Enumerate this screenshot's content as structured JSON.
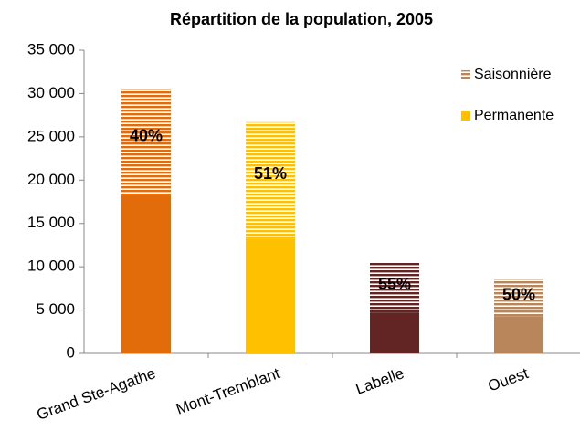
{
  "chart_data": {
    "type": "stacked_bar",
    "title": "Répartition de la population, 2005",
    "categories": [
      "Grand Ste-Agathe",
      "Mont-Tremblant",
      "Labelle",
      "Ouest"
    ],
    "category_colors": [
      "#e36c0a",
      "#ffc000",
      "#632523",
      "#b8865a"
    ],
    "series": [
      {
        "name": "Permanente",
        "color": "#ffc000",
        "pattern": "solid",
        "values": [
          18300,
          13200,
          4700,
          4300
        ]
      },
      {
        "name": "Saisonnière",
        "color": "#b8865a",
        "pattern": "striped",
        "values": [
          12200,
          13500,
          5800,
          4300
        ]
      }
    ],
    "seasonal_share_labels": [
      "40%",
      "51%",
      "55%",
      "50%"
    ],
    "ylim": [
      0,
      35000
    ],
    "yticks": [
      0,
      {
        "value": 5000,
        "label": "5 000"
      },
      {
        "value": 10000,
        "label": "10 000"
      },
      {
        "value": 15000,
        "label": "15 000"
      },
      {
        "value": 20000,
        "label": "20 000"
      },
      {
        "value": 25000,
        "label": "25 000"
      },
      {
        "value": 30000,
        "label": "30 000"
      },
      {
        "value": 35000,
        "label": "35 000"
      }
    ],
    "grid": false,
    "legend": "upper right"
  }
}
